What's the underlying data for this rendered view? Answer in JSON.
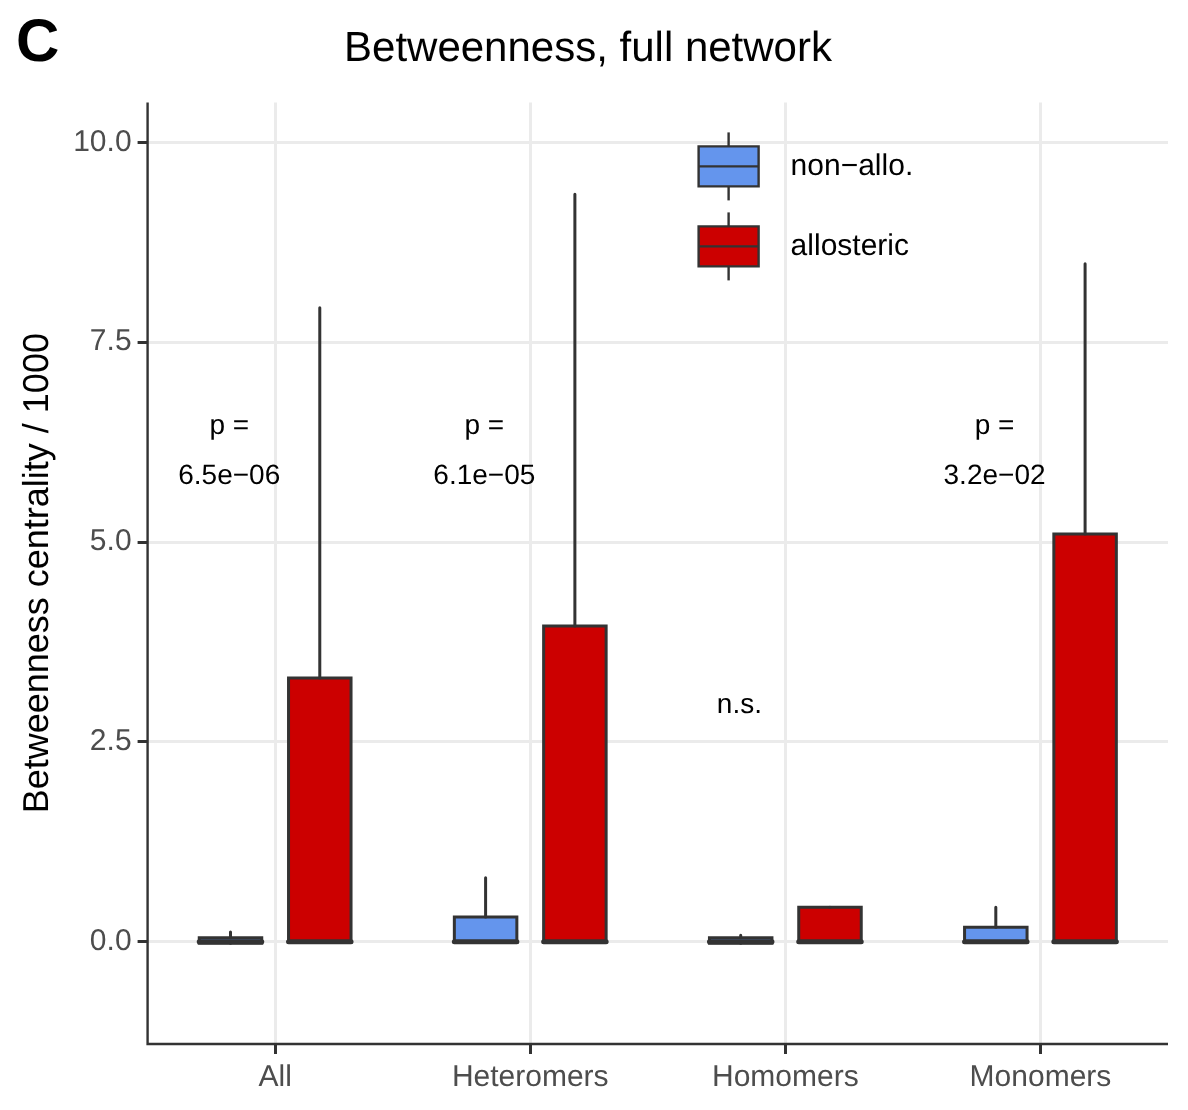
{
  "chart_data": {
    "type": "box",
    "title": "Betweenness, full network",
    "ylabel": "Betweenness centrality / 1000",
    "categories": [
      "All",
      "Heteromers",
      "Homomers",
      "Monomers"
    ],
    "series": [
      {
        "name": "non−allo.",
        "color": "#6495ed",
        "boxes": [
          {
            "low": 0,
            "q1": -0.02,
            "median": 0,
            "q3": 0.05,
            "high": 0.12
          },
          {
            "low": 0,
            "q1": 0,
            "median": 0,
            "q3": 0.31,
            "high": 0.8
          },
          {
            "low": 0,
            "q1": -0.02,
            "median": 0,
            "q3": 0.05,
            "high": 0.08
          },
          {
            "low": 0,
            "q1": 0,
            "median": 0,
            "q3": 0.18,
            "high": 0.43
          }
        ]
      },
      {
        "name": "allosteric",
        "color": "#cc0000",
        "boxes": [
          {
            "low": 0,
            "q1": 0,
            "median": 0,
            "q3": 3.3,
            "high": 7.93
          },
          {
            "low": 0,
            "q1": 0,
            "median": 0,
            "q3": 3.95,
            "high": 9.35
          },
          {
            "low": 0,
            "q1": 0,
            "median": 0,
            "q3": 0.43,
            "high": 0.43
          },
          {
            "low": 0,
            "q1": 0,
            "median": 0,
            "q3": 5.1,
            "high": 8.48
          }
        ]
      }
    ],
    "ylim": [
      -1.28,
      10.5
    ],
    "yticks": [
      {
        "value": 0,
        "label": "0.0"
      },
      {
        "value": 2.5,
        "label": "2.5"
      },
      {
        "value": 5,
        "label": "5.0"
      },
      {
        "value": 7.5,
        "label": "7.5"
      },
      {
        "value": 10,
        "label": "10.0"
      }
    ],
    "grid": true,
    "legend": "top",
    "annotations": [
      "C",
      "p =\n6.5e−06",
      "p =\n6.1e−05",
      "n.s.",
      "p =\n3.2e−02"
    ]
  }
}
